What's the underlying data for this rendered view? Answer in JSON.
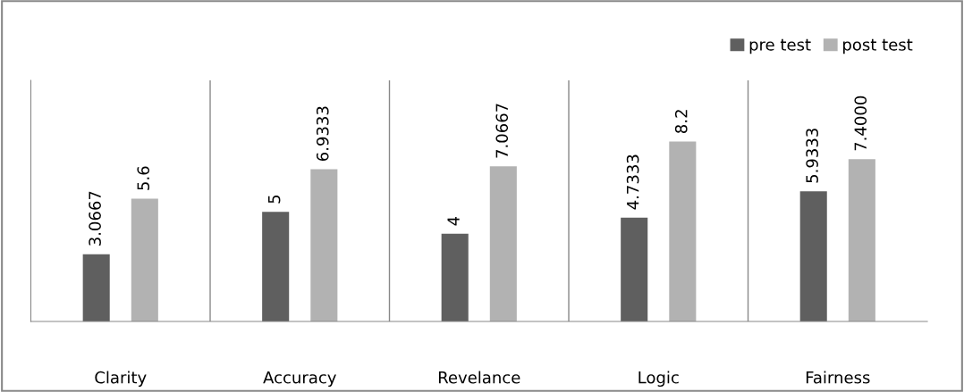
{
  "chart_data": {
    "type": "bar",
    "categories": [
      "Clarity",
      "Accuracy",
      "Revelance",
      "Logic",
      "Fairness"
    ],
    "series": [
      {
        "name": "pre test",
        "color": "#5f5f5f",
        "values": [
          3.0667,
          5,
          4,
          4.7333,
          5.9333
        ],
        "value_labels": [
          "3.0667",
          "5",
          "4",
          "4.7333",
          "5.9333"
        ]
      },
      {
        "name": "post test",
        "color": "#b2b2b2",
        "values": [
          5.6,
          6.9333,
          7.0667,
          8.2,
          7.4
        ],
        "value_labels": [
          "5.6",
          "6.9333",
          "7.0667",
          "8.2",
          "7.4000"
        ]
      }
    ],
    "grid": "x",
    "legend": "top right"
  }
}
